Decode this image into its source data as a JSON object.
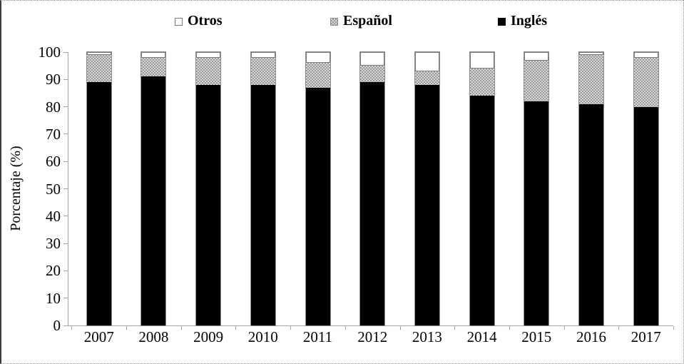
{
  "chart_data": {
    "type": "bar",
    "stacked": true,
    "title": "",
    "xlabel": "",
    "ylabel": "Porcentaje (%)",
    "ylim": [
      0,
      100
    ],
    "ytick_labels": [
      "0",
      "10",
      "20",
      "30",
      "40",
      "50",
      "60",
      "70",
      "80",
      "90",
      "100"
    ],
    "categories": [
      "2007",
      "2008",
      "2009",
      "2010",
      "2011",
      "2012",
      "2013",
      "2014",
      "2015",
      "2016",
      "2017"
    ],
    "series": [
      {
        "name": "Inglés",
        "swatch": "black",
        "color": "#000000",
        "values": [
          89,
          91,
          88,
          88,
          87,
          89,
          88,
          84,
          82,
          81,
          80
        ]
      },
      {
        "name": "Español",
        "swatch": "gray-pattern",
        "color": "#c9c9c9",
        "values": [
          10,
          7,
          10,
          10,
          9,
          6,
          5,
          10,
          15,
          18,
          18
        ]
      },
      {
        "name": "Otros",
        "swatch": "white",
        "color": "#ffffff",
        "values": [
          1,
          2,
          2,
          2,
          4,
          5,
          7,
          6,
          3,
          1,
          2
        ]
      }
    ],
    "legend": [
      {
        "label": "Otros",
        "swatch": "white"
      },
      {
        "label": "Español",
        "swatch": "gray-pattern"
      },
      {
        "label": "Inglés",
        "swatch": "black"
      }
    ],
    "legend_position": "top",
    "grid": false
  }
}
